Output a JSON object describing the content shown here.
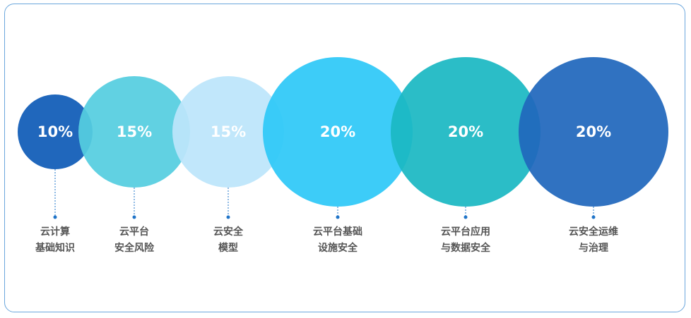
{
  "items": [
    {
      "percent": "10%",
      "value": 10,
      "line1": "云计算",
      "line2": "基础知识",
      "color": "#2067bc"
    },
    {
      "percent": "15%",
      "value": 15,
      "line1": "云平台",
      "line2": "安全风险",
      "color": "#55cde0"
    },
    {
      "percent": "15%",
      "value": 15,
      "line1": "云安全",
      "line2": "模型",
      "color": "#bce5fb"
    },
    {
      "percent": "20%",
      "value": 20,
      "line1": "云平台基础",
      "line2": "设施安全",
      "color": "#2ec8f7"
    },
    {
      "percent": "20%",
      "value": 20,
      "line1": "云平台应用",
      "line2": "与数据安全",
      "color": "#1bb8c3"
    },
    {
      "percent": "20%",
      "value": 20,
      "line1": "云安全运维",
      "line2": "与治理",
      "color": "#2067bc"
    }
  ],
  "connector_color": "#1f74c8"
}
